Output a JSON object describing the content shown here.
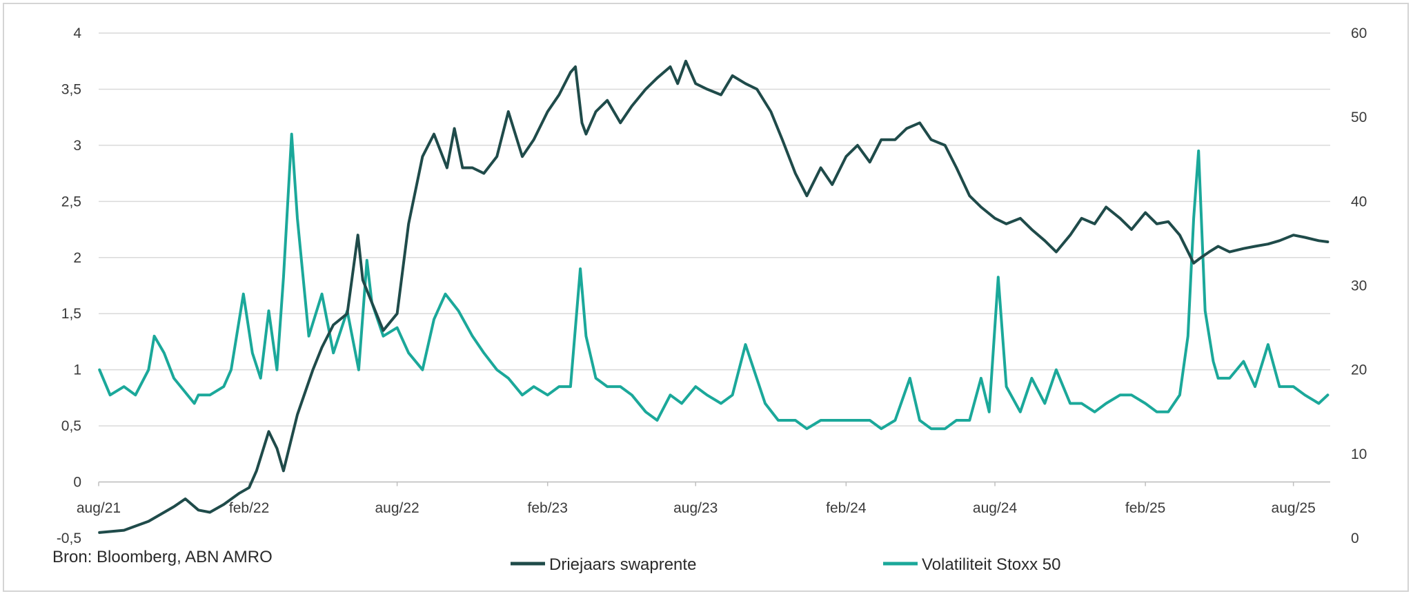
{
  "source": "Bron: Bloomberg, ABN AMRO",
  "colors": {
    "swap": "#1f4b4a",
    "vol": "#1ba89a",
    "grid": "#d9d9d9",
    "axis": "#bfbfbf"
  },
  "chart_data": {
    "type": "line",
    "title": "",
    "xlabel": "",
    "ylabel": "",
    "y2label": "",
    "grid": true,
    "legend": "bottom",
    "x_ticks": [
      "aug/21",
      "feb/22",
      "aug/22",
      "feb/23",
      "aug/23",
      "feb/24",
      "aug/24",
      "feb/25",
      "aug/25"
    ],
    "x_range": [
      "aug/21",
      "sep/25"
    ],
    "y_left": {
      "min": -0.5,
      "max": 4,
      "ticks": [
        "-0,5",
        "0",
        "0,5",
        "1",
        "1,5",
        "2",
        "2,5",
        "3",
        "3,5",
        "4"
      ]
    },
    "y_right": {
      "min": 0,
      "max": 60,
      "ticks": [
        "0",
        "10",
        "20",
        "30",
        "40",
        "50",
        "60"
      ]
    },
    "series": [
      {
        "name": "Driejaars swaprente",
        "axis": "left",
        "x": [
          "2021-08-02",
          "2021-09-01",
          "2021-10-01",
          "2021-11-01",
          "2021-11-15",
          "2021-12-01",
          "2021-12-15",
          "2022-01-01",
          "2022-01-20",
          "2022-02-01",
          "2022-02-10",
          "2022-02-25",
          "2022-03-07",
          "2022-03-15",
          "2022-04-01",
          "2022-04-20",
          "2022-05-01",
          "2022-05-15",
          "2022-06-01",
          "2022-06-14",
          "2022-06-20",
          "2022-07-01",
          "2022-07-15",
          "2022-08-01",
          "2022-08-15",
          "2022-09-01",
          "2022-09-15",
          "2022-10-01",
          "2022-10-10",
          "2022-10-20",
          "2022-11-01",
          "2022-11-15",
          "2022-12-01",
          "2022-12-15",
          "2023-01-01",
          "2023-01-15",
          "2023-02-01",
          "2023-02-15",
          "2023-03-01",
          "2023-03-07",
          "2023-03-15",
          "2023-03-20",
          "2023-04-01",
          "2023-04-15",
          "2023-05-01",
          "2023-05-15",
          "2023-06-01",
          "2023-06-15",
          "2023-07-01",
          "2023-07-10",
          "2023-07-20",
          "2023-08-01",
          "2023-08-15",
          "2023-09-01",
          "2023-09-15",
          "2023-10-01",
          "2023-10-15",
          "2023-11-01",
          "2023-11-15",
          "2023-12-01",
          "2023-12-15",
          "2024-01-01",
          "2024-01-15",
          "2024-02-01",
          "2024-02-15",
          "2024-03-01",
          "2024-03-15",
          "2024-04-01",
          "2024-04-15",
          "2024-05-01",
          "2024-05-15",
          "2024-06-01",
          "2024-06-15",
          "2024-07-01",
          "2024-07-15",
          "2024-08-01",
          "2024-08-15",
          "2024-09-01",
          "2024-09-15",
          "2024-10-01",
          "2024-10-15",
          "2024-11-01",
          "2024-11-15",
          "2024-12-01",
          "2024-12-15",
          "2025-01-01",
          "2025-01-15",
          "2025-02-01",
          "2025-02-15",
          "2025-03-01",
          "2025-03-15",
          "2025-04-01",
          "2025-04-10",
          "2025-04-20",
          "2025-05-01",
          "2025-05-15",
          "2025-06-01",
          "2025-06-15",
          "2025-07-01",
          "2025-07-15",
          "2025-08-01",
          "2025-08-15",
          "2025-09-01",
          "2025-09-12"
        ],
        "y": [
          -0.45,
          -0.43,
          -0.35,
          -0.22,
          -0.15,
          -0.25,
          -0.27,
          -0.2,
          -0.1,
          -0.05,
          0.1,
          0.45,
          0.3,
          0.1,
          0.6,
          1.0,
          1.2,
          1.4,
          1.5,
          2.2,
          1.8,
          1.6,
          1.35,
          1.5,
          2.3,
          2.9,
          3.1,
          2.8,
          3.15,
          2.8,
          2.8,
          2.75,
          2.9,
          3.3,
          2.9,
          3.05,
          3.3,
          3.45,
          3.65,
          3.7,
          3.2,
          3.1,
          3.3,
          3.4,
          3.2,
          3.35,
          3.5,
          3.6,
          3.7,
          3.55,
          3.75,
          3.55,
          3.5,
          3.45,
          3.62,
          3.55,
          3.5,
          3.3,
          3.05,
          2.75,
          2.55,
          2.8,
          2.65,
          2.9,
          3.0,
          2.85,
          3.05,
          3.05,
          3.15,
          3.2,
          3.05,
          3.0,
          2.8,
          2.55,
          2.45,
          2.35,
          2.3,
          2.35,
          2.25,
          2.15,
          2.05,
          2.2,
          2.35,
          2.3,
          2.45,
          2.35,
          2.25,
          2.4,
          2.3,
          2.32,
          2.2,
          1.95,
          2.0,
          2.05,
          2.1,
          2.05,
          2.08,
          2.1,
          2.12,
          2.15,
          2.2,
          2.18,
          2.15,
          2.14
        ]
      },
      {
        "name": "Volatiliteit Stoxx 50",
        "axis": "right",
        "x": [
          "2021-08-02",
          "2021-08-15",
          "2021-09-01",
          "2021-09-15",
          "2021-10-01",
          "2021-10-08",
          "2021-10-20",
          "2021-11-01",
          "2021-11-26",
          "2021-12-01",
          "2021-12-15",
          "2022-01-01",
          "2022-01-10",
          "2022-01-25",
          "2022-02-05",
          "2022-02-15",
          "2022-02-25",
          "2022-03-07",
          "2022-03-15",
          "2022-03-25",
          "2022-04-01",
          "2022-04-15",
          "2022-05-01",
          "2022-05-15",
          "2022-06-01",
          "2022-06-15",
          "2022-06-25",
          "2022-07-01",
          "2022-07-15",
          "2022-08-01",
          "2022-08-15",
          "2022-09-01",
          "2022-09-15",
          "2022-09-29",
          "2022-10-15",
          "2022-11-01",
          "2022-11-15",
          "2022-12-01",
          "2022-12-15",
          "2023-01-01",
          "2023-01-15",
          "2023-02-01",
          "2023-02-15",
          "2023-03-01",
          "2023-03-13",
          "2023-03-20",
          "2023-04-01",
          "2023-04-15",
          "2023-05-01",
          "2023-05-15",
          "2023-06-01",
          "2023-06-15",
          "2023-07-01",
          "2023-07-15",
          "2023-08-01",
          "2023-08-15",
          "2023-09-01",
          "2023-09-15",
          "2023-10-01",
          "2023-10-25",
          "2023-11-10",
          "2023-12-01",
          "2023-12-15",
          "2024-01-01",
          "2024-01-15",
          "2024-02-01",
          "2024-02-15",
          "2024-03-01",
          "2024-03-15",
          "2024-04-01",
          "2024-04-19",
          "2024-05-01",
          "2024-05-15",
          "2024-06-01",
          "2024-06-15",
          "2024-07-01",
          "2024-07-15",
          "2024-07-25",
          "2024-08-05",
          "2024-08-15",
          "2024-09-01",
          "2024-09-15",
          "2024-10-01",
          "2024-10-15",
          "2024-11-01",
          "2024-11-15",
          "2024-12-01",
          "2024-12-15",
          "2025-01-01",
          "2025-01-15",
          "2025-02-01",
          "2025-02-15",
          "2025-03-01",
          "2025-03-15",
          "2025-03-25",
          "2025-04-01",
          "2025-04-07",
          "2025-04-15",
          "2025-04-25",
          "2025-05-01",
          "2025-05-15",
          "2025-06-01",
          "2025-06-15",
          "2025-07-01",
          "2025-07-15",
          "2025-08-01",
          "2025-08-15",
          "2025-09-01",
          "2025-09-12"
        ],
        "y": [
          20,
          17,
          18,
          17,
          20,
          24,
          22,
          19,
          16,
          17,
          17,
          18,
          20,
          29,
          22,
          19,
          27,
          20,
          31,
          48,
          38,
          24,
          29,
          22,
          27,
          20,
          33,
          28,
          24,
          25,
          22,
          20,
          26,
          29,
          27,
          24,
          22,
          20,
          19,
          17,
          18,
          17,
          18,
          18,
          32,
          24,
          19,
          18,
          18,
          17,
          15,
          14,
          17,
          16,
          18,
          17,
          16,
          17,
          23,
          16,
          14,
          14,
          13,
          14,
          14,
          14,
          14,
          14,
          13,
          14,
          19,
          14,
          13,
          13,
          14,
          14,
          19,
          15,
          31,
          18,
          15,
          19,
          16,
          20,
          16,
          16,
          15,
          16,
          17,
          17,
          16,
          15,
          15,
          17,
          24,
          38,
          46,
          27,
          21,
          19,
          19,
          21,
          18,
          23,
          18,
          18,
          17,
          16,
          17
        ]
      }
    ]
  }
}
